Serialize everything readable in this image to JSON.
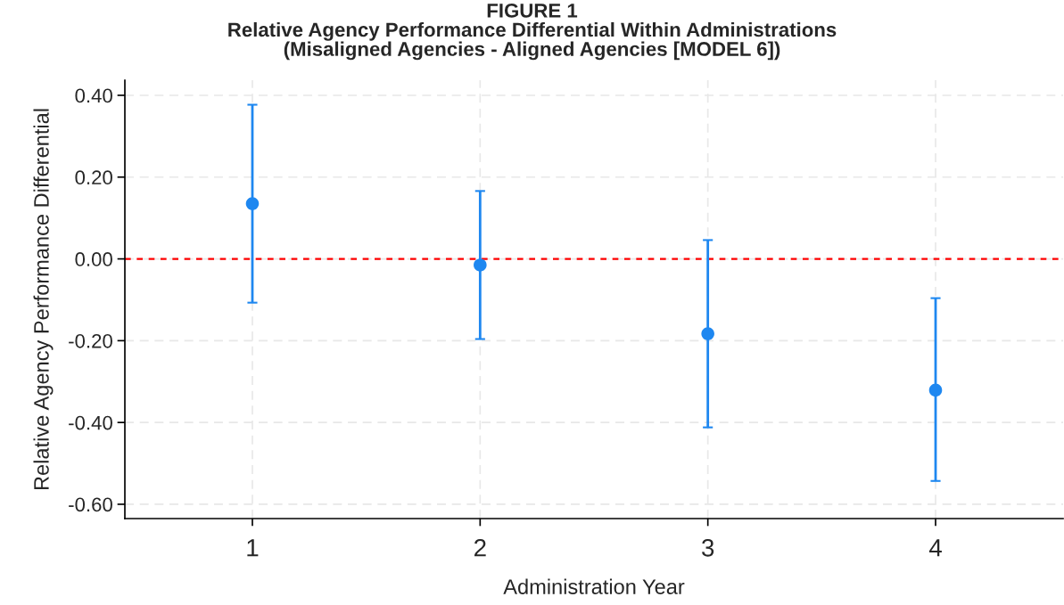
{
  "chart_data": {
    "type": "scatter",
    "title": "FIGURE 1\nRelative Agency Performance Differential Within Administrations\n(Misaligned Agencies - Aligned Agencies [MODEL 6])",
    "xlabel": "Administration Year",
    "ylabel": "Relative Agency Performance Differential",
    "x": [
      1,
      2,
      3,
      4
    ],
    "series": [
      {
        "color": "#1e87f0",
        "values": [
          0.135,
          -0.015,
          -0.183,
          -0.321
        ],
        "errors": [
          [
            -0.107,
            0.377
          ],
          [
            -0.196,
            0.166
          ],
          [
            -0.412,
            0.046
          ],
          [
            -0.543,
            -0.096
          ]
        ]
      }
    ],
    "marker": "circle",
    "xlim": [
      0.44,
      4.56
    ],
    "xticks": [
      1,
      2,
      3,
      4
    ],
    "ylim": [
      -0.635,
      0.437
    ],
    "yticks": [
      {
        "value": 0.4,
        "label": "0.40"
      },
      {
        "value": 0.2,
        "label": "0.20"
      },
      {
        "value": 0,
        "label": "0.00"
      },
      {
        "value": -0.2,
        "label": "-0.20"
      },
      {
        "value": -0.4,
        "label": "-0.40"
      },
      {
        "value": -0.6,
        "label": "-0.60"
      }
    ],
    "ref_lines": [
      {
        "axis": "y",
        "value": 0,
        "color": "#ff0000",
        "line_style": "dashed"
      }
    ],
    "grid": true
  }
}
